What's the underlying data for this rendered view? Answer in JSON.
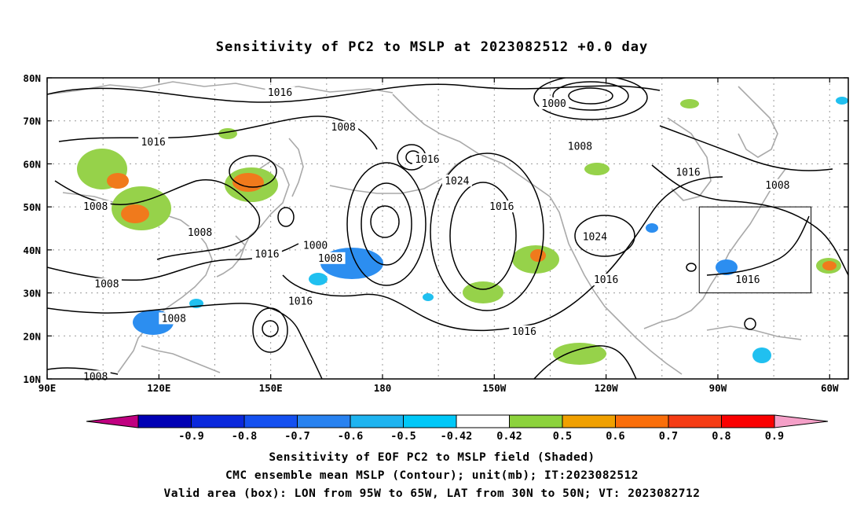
{
  "title": "Sensitivity of PC2 to MSLP at 2023082512 +0.0 day",
  "axes": {
    "lat_ticks": [
      "10N",
      "20N",
      "30N",
      "40N",
      "50N",
      "60N",
      "70N",
      "80N"
    ],
    "lon_ticks": [
      "90E",
      "120E",
      "150E",
      "180",
      "150W",
      "120W",
      "90W",
      "60W"
    ]
  },
  "map": {
    "lon_range": [
      90,
      305
    ],
    "lat_range": [
      10,
      80
    ],
    "grid": "dotted",
    "coastline_color": "#a9a9a9",
    "contour_color": "#000000"
  },
  "contours": {
    "unit": "mb",
    "labels": [
      {
        "text": "1016",
        "lon": 152.5,
        "lat": 76.5
      },
      {
        "text": "1000",
        "lon": 226,
        "lat": 74
      },
      {
        "text": "1008",
        "lon": 169.5,
        "lat": 68.5
      },
      {
        "text": "1008",
        "lon": 233,
        "lat": 64
      },
      {
        "text": "1016",
        "lon": 118.5,
        "lat": 65
      },
      {
        "text": "1016",
        "lon": 192,
        "lat": 61
      },
      {
        "text": "1016",
        "lon": 262,
        "lat": 58
      },
      {
        "text": "1024",
        "lon": 200,
        "lat": 56
      },
      {
        "text": "1008",
        "lon": 286,
        "lat": 55
      },
      {
        "text": "1008",
        "lon": 103,
        "lat": 50
      },
      {
        "text": "1016",
        "lon": 212,
        "lat": 50
      },
      {
        "text": "1008",
        "lon": 131,
        "lat": 44
      },
      {
        "text": "1024",
        "lon": 237,
        "lat": 43
      },
      {
        "text": "1000",
        "lon": 162,
        "lat": 41
      },
      {
        "text": "1016",
        "lon": 149,
        "lat": 39
      },
      {
        "text": "1008",
        "lon": 166,
        "lat": 38
      },
      {
        "text": "1016",
        "lon": 240,
        "lat": 33
      },
      {
        "text": "1008",
        "lon": 106,
        "lat": 32
      },
      {
        "text": "1016",
        "lon": 278,
        "lat": 33
      },
      {
        "text": "1016",
        "lon": 158,
        "lat": 28
      },
      {
        "text": "1008",
        "lon": 124,
        "lat": 24
      },
      {
        "text": "1016",
        "lon": 218,
        "lat": 21
      },
      {
        "text": "1008",
        "lon": 103,
        "lat": 10.5
      }
    ]
  },
  "valid_box": {
    "lon_min": 265,
    "lon_max": 295,
    "lat_min": 30,
    "lat_max": 50
  },
  "colorbar": {
    "labels": [
      "-0.9",
      "-0.8",
      "-0.7",
      "-0.6",
      "-0.5",
      "-0.42",
      "0.42",
      "0.5",
      "0.6",
      "0.7",
      "0.8",
      "0.9"
    ],
    "colors": [
      "#c00080",
      "#0000b4",
      "#0a28dc",
      "#1450f0",
      "#2882f0",
      "#1eb4f0",
      "#00c8f8",
      "#ffffff",
      "#8cd23c",
      "#f0a000",
      "#fa6e0a",
      "#f53c14",
      "#fa0000",
      "#f5a0c8"
    ]
  },
  "shaded": {
    "negative_color": "#2c8ef0",
    "negative_core_color": "#1f6ae0",
    "positive_color": "#96d24a",
    "positive_core_color": "#f07a1c",
    "cyan_color": "#20c0f0"
  },
  "captions": {
    "line1": "Sensitivity of EOF PC2 to MSLP field (Shaded)",
    "line2": "CMC ensemble mean MSLP (Contour); unit(mb); IT:2023082512",
    "line3": "Valid area (box): LON from 95W to 65W, LAT from 30N to 50N; VT: 2023082712"
  }
}
